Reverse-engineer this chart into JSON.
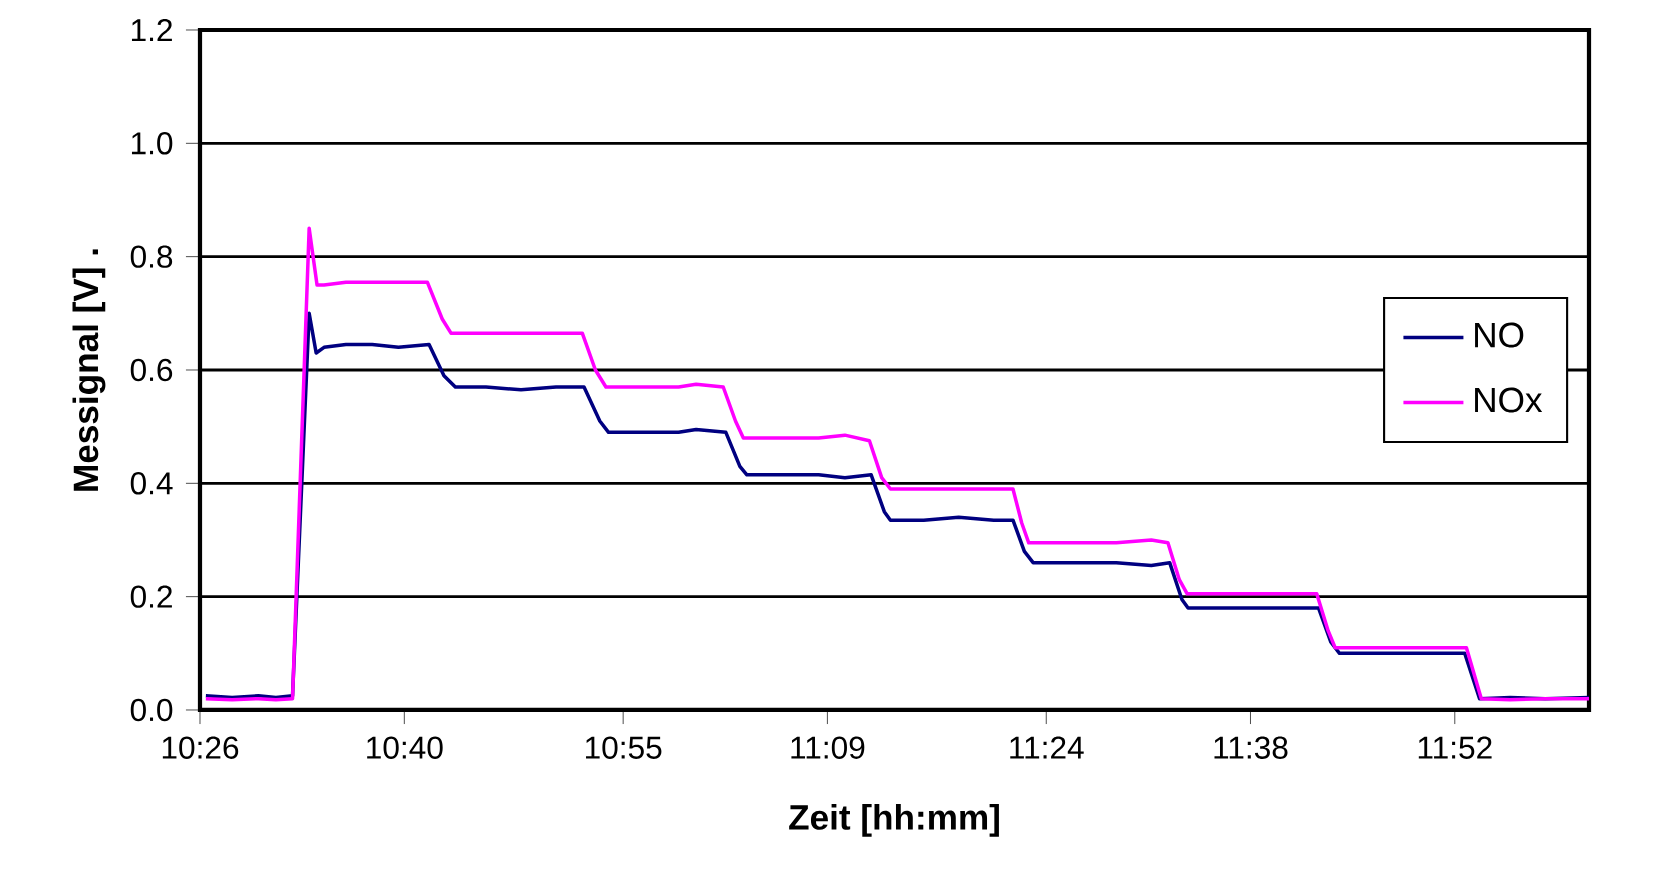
{
  "chart_data": {
    "type": "line",
    "xlabel": "Zeit [hh:mm]",
    "ylabel": "Messignal [V]    .",
    "xlim": [
      10.4333,
      12.02
    ],
    "ylim": [
      0,
      1.2
    ],
    "xticks": [
      {
        "value": 10.4333,
        "label": "10:26"
      },
      {
        "value": 10.6667,
        "label": "10:40"
      },
      {
        "value": 10.9167,
        "label": "10:55"
      },
      {
        "value": 11.15,
        "label": "11:09"
      },
      {
        "value": 11.4,
        "label": "11:24"
      },
      {
        "value": 11.6333,
        "label": "11:38"
      },
      {
        "value": 11.8667,
        "label": "11:52"
      }
    ],
    "yticks": [
      {
        "value": 0,
        "label": "0.0"
      },
      {
        "value": 0.2,
        "label": "0.2"
      },
      {
        "value": 0.4,
        "label": "0.4"
      },
      {
        "value": 0.6,
        "label": "0.6"
      },
      {
        "value": 0.8,
        "label": "0.8"
      },
      {
        "value": 1.0,
        "label": "1.0"
      },
      {
        "value": 1.2,
        "label": "1.2"
      }
    ],
    "grid": "y",
    "legend": "right",
    "marker": "none",
    "line_style": "solid",
    "series": [
      {
        "name": "NO",
        "color": "#000080",
        "x": [
          10.44,
          10.47,
          10.5,
          10.52,
          10.539,
          10.558,
          10.566,
          10.575,
          10.6,
          10.63,
          10.66,
          10.695,
          10.712,
          10.725,
          10.76,
          10.8,
          10.84,
          10.872,
          10.89,
          10.9,
          10.94,
          10.98,
          11.0,
          11.034,
          11.05,
          11.058,
          11.1,
          11.14,
          11.17,
          11.2,
          11.215,
          11.222,
          11.26,
          11.3,
          11.34,
          11.362,
          11.375,
          11.385,
          11.43,
          11.48,
          11.52,
          11.541,
          11.555,
          11.562,
          11.6,
          11.65,
          11.69,
          11.711,
          11.725,
          11.735,
          11.78,
          11.83,
          11.878,
          11.895,
          11.93,
          11.97,
          12.02
        ],
        "values": [
          0.025,
          0.022,
          0.025,
          0.022,
          0.025,
          0.7,
          0.63,
          0.64,
          0.645,
          0.645,
          0.64,
          0.645,
          0.59,
          0.57,
          0.57,
          0.565,
          0.57,
          0.57,
          0.51,
          0.49,
          0.49,
          0.49,
          0.495,
          0.49,
          0.43,
          0.415,
          0.415,
          0.415,
          0.41,
          0.415,
          0.35,
          0.335,
          0.335,
          0.34,
          0.335,
          0.335,
          0.28,
          0.26,
          0.26,
          0.26,
          0.255,
          0.26,
          0.195,
          0.18,
          0.18,
          0.18,
          0.18,
          0.18,
          0.12,
          0.1,
          0.1,
          0.1,
          0.1,
          0.02,
          0.022,
          0.02,
          0.022
        ]
      },
      {
        "name": "NOx",
        "color": "#ff00ff",
        "x": [
          10.44,
          10.47,
          10.5,
          10.52,
          10.539,
          10.558,
          10.567,
          10.575,
          10.6,
          10.63,
          10.66,
          10.693,
          10.71,
          10.72,
          10.76,
          10.8,
          10.84,
          10.87,
          10.885,
          10.897,
          10.94,
          10.98,
          11.0,
          11.031,
          11.045,
          11.054,
          11.1,
          11.14,
          11.17,
          11.198,
          11.212,
          11.222,
          11.26,
          11.3,
          11.34,
          11.362,
          11.372,
          11.38,
          11.43,
          11.48,
          11.52,
          11.539,
          11.552,
          11.561,
          11.6,
          11.65,
          11.69,
          11.709,
          11.722,
          11.73,
          11.78,
          11.83,
          11.88,
          11.897,
          11.93,
          11.97,
          12.02
        ],
        "values": [
          0.02,
          0.018,
          0.02,
          0.018,
          0.02,
          0.85,
          0.75,
          0.75,
          0.755,
          0.755,
          0.755,
          0.755,
          0.69,
          0.665,
          0.665,
          0.665,
          0.665,
          0.665,
          0.6,
          0.57,
          0.57,
          0.57,
          0.575,
          0.57,
          0.51,
          0.48,
          0.48,
          0.48,
          0.485,
          0.475,
          0.41,
          0.39,
          0.39,
          0.39,
          0.39,
          0.39,
          0.33,
          0.295,
          0.295,
          0.295,
          0.3,
          0.295,
          0.23,
          0.205,
          0.205,
          0.205,
          0.205,
          0.205,
          0.14,
          0.11,
          0.11,
          0.11,
          0.11,
          0.02,
          0.018,
          0.02,
          0.02
        ]
      }
    ]
  }
}
